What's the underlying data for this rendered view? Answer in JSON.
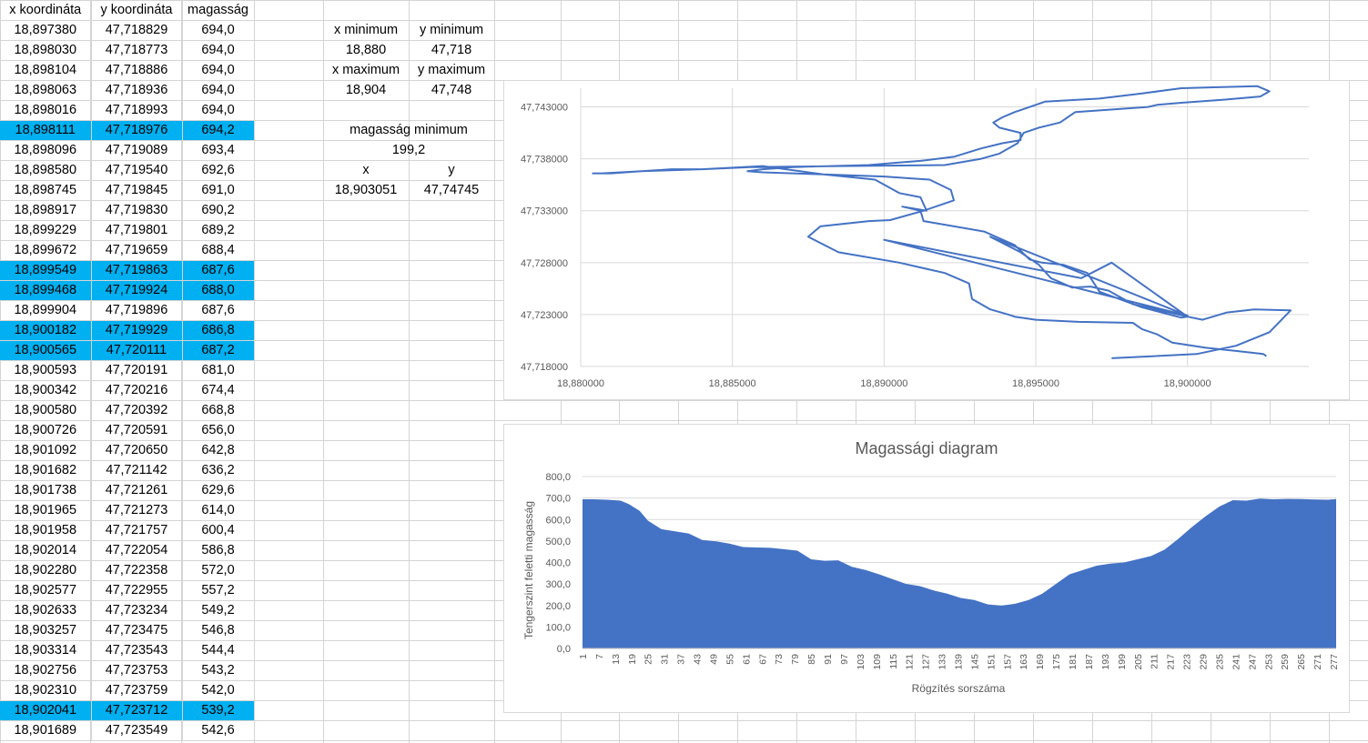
{
  "table": {
    "headers": [
      "x koordináta",
      "y koordináta",
      "magasság"
    ],
    "highlight_color": "#00b0f0",
    "rows": [
      {
        "x": "18,897380",
        "y": "47,718829",
        "h": "694,0",
        "hl": false
      },
      {
        "x": "18,898030",
        "y": "47,718773",
        "h": "694,0",
        "hl": false
      },
      {
        "x": "18,898104",
        "y": "47,718886",
        "h": "694,0",
        "hl": false
      },
      {
        "x": "18,898063",
        "y": "47,718936",
        "h": "694,0",
        "hl": false
      },
      {
        "x": "18,898016",
        "y": "47,718993",
        "h": "694,0",
        "hl": false
      },
      {
        "x": "18,898111",
        "y": "47,718976",
        "h": "694,2",
        "hl": true
      },
      {
        "x": "18,898096",
        "y": "47,719089",
        "h": "693,4",
        "hl": false
      },
      {
        "x": "18,898580",
        "y": "47,719540",
        "h": "692,6",
        "hl": false
      },
      {
        "x": "18,898745",
        "y": "47,719845",
        "h": "691,0",
        "hl": false
      },
      {
        "x": "18,898917",
        "y": "47,719830",
        "h": "690,2",
        "hl": false
      },
      {
        "x": "18,899229",
        "y": "47,719801",
        "h": "689,2",
        "hl": false
      },
      {
        "x": "18,899672",
        "y": "47,719659",
        "h": "688,4",
        "hl": false
      },
      {
        "x": "18,899549",
        "y": "47,719863",
        "h": "687,6",
        "hl": true
      },
      {
        "x": "18,899468",
        "y": "47,719924",
        "h": "688,0",
        "hl": true
      },
      {
        "x": "18,899904",
        "y": "47,719896",
        "h": "687,6",
        "hl": false
      },
      {
        "x": "18,900182",
        "y": "47,719929",
        "h": "686,8",
        "hl": true
      },
      {
        "x": "18,900565",
        "y": "47,720111",
        "h": "687,2",
        "hl": true
      },
      {
        "x": "18,900593",
        "y": "47,720191",
        "h": "681,0",
        "hl": false
      },
      {
        "x": "18,900342",
        "y": "47,720216",
        "h": "674,4",
        "hl": false
      },
      {
        "x": "18,900580",
        "y": "47,720392",
        "h": "668,8",
        "hl": false
      },
      {
        "x": "18,900726",
        "y": "47,720591",
        "h": "656,0",
        "hl": false
      },
      {
        "x": "18,901092",
        "y": "47,720650",
        "h": "642,8",
        "hl": false
      },
      {
        "x": "18,901682",
        "y": "47,721142",
        "h": "636,2",
        "hl": false
      },
      {
        "x": "18,901738",
        "y": "47,721261",
        "h": "629,6",
        "hl": false
      },
      {
        "x": "18,901965",
        "y": "47,721273",
        "h": "614,0",
        "hl": false
      },
      {
        "x": "18,901958",
        "y": "47,721757",
        "h": "600,4",
        "hl": false
      },
      {
        "x": "18,902014",
        "y": "47,722054",
        "h": "586,8",
        "hl": false
      },
      {
        "x": "18,902280",
        "y": "47,722358",
        "h": "572,0",
        "hl": false
      },
      {
        "x": "18,902577",
        "y": "47,722955",
        "h": "557,2",
        "hl": false
      },
      {
        "x": "18,902633",
        "y": "47,723234",
        "h": "549,2",
        "hl": false
      },
      {
        "x": "18,903257",
        "y": "47,723475",
        "h": "546,8",
        "hl": false
      },
      {
        "x": "18,903314",
        "y": "47,723543",
        "h": "544,4",
        "hl": false
      },
      {
        "x": "18,902756",
        "y": "47,723753",
        "h": "543,2",
        "hl": false
      },
      {
        "x": "18,902310",
        "y": "47,723759",
        "h": "542,0",
        "hl": false
      },
      {
        "x": "18,902041",
        "y": "47,723712",
        "h": "539,2",
        "hl": true
      },
      {
        "x": "18,901689",
        "y": "47,723549",
        "h": "542,6",
        "hl": false
      }
    ]
  },
  "summary": {
    "x_min_label": "x minimum",
    "y_min_label": "y minimum",
    "x_min_value": "18,880",
    "y_min_value": "47,718",
    "x_max_label": "x maximum",
    "y_max_label": "y maximum",
    "x_max_value": "18,904",
    "y_max_value": "47,748",
    "alt_min_label": "magasság minimum",
    "alt_min_value": "199,2",
    "x_label": "x",
    "y_label": "y",
    "x_value": "18,903051",
    "y_value": "47,74745"
  },
  "chart_data": [
    {
      "type": "scatter",
      "title": "",
      "xlabel": "",
      "ylabel": "",
      "xlim": [
        18.88,
        18.904
      ],
      "ylim": [
        47.718,
        47.745
      ],
      "x_ticks": [
        "18,880000",
        "18,885000",
        "18,890000",
        "18,895000",
        "18,900000"
      ],
      "y_ticks": [
        "47,718000",
        "47,723000",
        "47,728000",
        "47,733000",
        "47,738000",
        "47,743000"
      ],
      "grid": true,
      "line_color": "#4472c4",
      "series": [
        {
          "x": [
            18.8975,
            18.9003,
            18.9016,
            18.9027,
            18.9034,
            18.9022,
            18.9013,
            18.9005,
            18.9,
            18.8982,
            18.8974,
            18.8968,
            18.8962,
            18.8955,
            18.8951,
            18.8945,
            18.8935,
            18.9,
            18.89,
            18.8965,
            18.8975,
            18.9,
            18.8998,
            18.8985,
            18.8985,
            18.8971,
            18.8967,
            18.8959,
            18.8952,
            18.8948,
            18.8943,
            18.8933,
            18.8917,
            18.8913,
            18.8912,
            18.8906,
            18.8914,
            18.8912,
            18.8905,
            18.8897,
            18.888,
            18.886,
            18.884,
            18.883,
            18.882,
            18.8807,
            18.8804,
            18.881,
            18.882,
            18.884,
            18.8856,
            18.8885,
            18.892,
            18.8932,
            18.8938,
            18.8944,
            18.8946,
            18.8951,
            18.8958,
            18.8963,
            18.8987,
            18.899,
            18.8998,
            18.9012,
            18.9024,
            18.9027,
            18.9023,
            18.901,
            18.8998,
            18.8985,
            18.8971,
            18.8953,
            18.895,
            18.8943,
            18.8939,
            18.8936,
            18.8938,
            18.8945,
            18.8945,
            18.8939,
            18.8932,
            18.8923,
            18.8912,
            18.8903,
            18.8895,
            18.887,
            18.886,
            18.8855,
            18.886,
            18.888,
            18.89,
            18.8915,
            18.8922,
            18.8923,
            18.8913,
            18.8902,
            18.8895,
            18.8879,
            18.8875,
            18.8885,
            18.8905,
            18.892,
            18.8928,
            18.8929,
            18.8935,
            18.8941,
            18.8943,
            18.895,
            18.8964,
            18.8982,
            18.8985,
            18.899,
            18.8995,
            18.9006,
            18.9016,
            18.9025,
            18.9026
          ],
          "y": [
            47.7188,
            47.7192,
            47.72,
            47.7213,
            47.7234,
            47.7235,
            47.7232,
            47.7225,
            47.7228,
            47.724,
            47.7253,
            47.7257,
            47.7256,
            47.7265,
            47.7278,
            47.729,
            47.7305,
            47.7229,
            47.7302,
            47.7265,
            47.728,
            47.7228,
            47.7227,
            47.7237,
            47.7237,
            47.7252,
            47.727,
            47.7278,
            47.728,
            47.7283,
            47.7297,
            47.731,
            47.7318,
            47.732,
            47.733,
            47.7334,
            47.733,
            47.7343,
            47.7347,
            47.736,
            47.7365,
            47.7373,
            47.737,
            47.737,
            47.7368,
            47.7366,
            47.7366,
            47.7366,
            47.7368,
            47.737,
            47.7372,
            47.7373,
            47.7374,
            47.738,
            47.7385,
            47.7395,
            47.7405,
            47.741,
            47.7415,
            47.7425,
            47.743,
            47.7432,
            47.7434,
            47.7437,
            47.744,
            47.7445,
            47.745,
            47.7449,
            47.7448,
            47.7443,
            47.7438,
            47.7435,
            47.7432,
            47.7425,
            47.742,
            47.7415,
            47.741,
            47.7405,
            47.7398,
            47.7395,
            47.739,
            47.7382,
            47.7378,
            47.7376,
            47.7374,
            47.7372,
            47.737,
            47.7368,
            47.7367,
            47.7365,
            47.7363,
            47.736,
            47.735,
            47.734,
            47.733,
            47.7321,
            47.732,
            47.7315,
            47.7305,
            47.729,
            47.728,
            47.727,
            47.726,
            47.7245,
            47.7235,
            47.723,
            47.7228,
            47.7225,
            47.7223,
            47.7222,
            47.7216,
            47.7211,
            47.7203,
            47.7198,
            47.7195,
            47.7192,
            47.719
          ]
        }
      ]
    },
    {
      "type": "area",
      "title": "Magassági diagram",
      "xlabel": "Rögzítés sorszáma",
      "ylabel": "Tengerszint feletti magasság",
      "ylim": [
        0,
        800
      ],
      "y_ticks": [
        "0,0",
        "100,0",
        "200,0",
        "300,0",
        "400,0",
        "500,0",
        "600,0",
        "700,0",
        "800,0"
      ],
      "x_ticks": [
        "1",
        "7",
        "13",
        "19",
        "25",
        "31",
        "37",
        "43",
        "49",
        "55",
        "61",
        "67",
        "73",
        "79",
        "85",
        "91",
        "97",
        "103",
        "109",
        "115",
        "121",
        "127",
        "133",
        "139",
        "145",
        "151",
        "157",
        "163",
        "169",
        "175",
        "181",
        "187",
        "193",
        "199",
        "205",
        "211",
        "217",
        "223",
        "229",
        "235",
        "241",
        "247",
        "253",
        "259",
        "265",
        "271",
        "277"
      ],
      "grid": true,
      "fill_color": "#4472c4",
      "x": [
        1,
        5,
        10,
        15,
        18,
        22,
        25,
        30,
        35,
        40,
        45,
        50,
        55,
        60,
        65,
        70,
        75,
        80,
        85,
        90,
        95,
        100,
        105,
        110,
        115,
        120,
        125,
        130,
        135,
        140,
        145,
        150,
        155,
        160,
        165,
        170,
        175,
        180,
        185,
        190,
        195,
        200,
        205,
        210,
        215,
        220,
        225,
        230,
        235,
        240,
        245,
        250,
        255,
        260,
        265,
        270,
        275,
        278
      ],
      "values": [
        694,
        694,
        692,
        688,
        672,
        640,
        595,
        555,
        545,
        535,
        505,
        498,
        488,
        472,
        470,
        468,
        462,
        455,
        415,
        408,
        410,
        380,
        365,
        345,
        322,
        300,
        290,
        270,
        255,
        235,
        225,
        205,
        199,
        208,
        225,
        255,
        300,
        345,
        365,
        385,
        395,
        400,
        415,
        430,
        460,
        510,
        565,
        615,
        660,
        690,
        688,
        697,
        694,
        696,
        695,
        693,
        692,
        695
      ]
    }
  ]
}
